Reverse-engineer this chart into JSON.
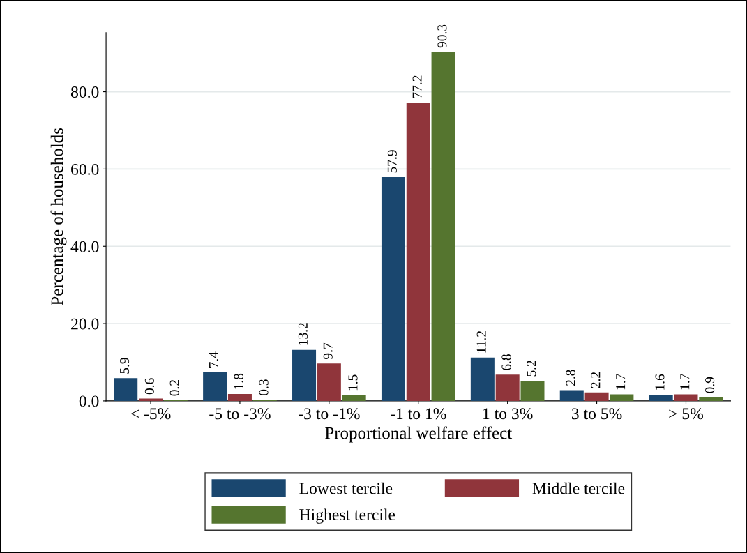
{
  "chart_data": {
    "type": "bar",
    "xlabel": "Proportional welfare effect",
    "ylabel": "Percentage of households",
    "categories": [
      "< -5%",
      "-5 to -3%",
      "-3 to -1%",
      "-1 to 1%",
      "1 to 3%",
      "3 to 5%",
      "> 5%"
    ],
    "series": [
      {
        "name": "Lowest tercile",
        "color": "#1a476f",
        "values": [
          5.9,
          7.4,
          13.2,
          57.9,
          11.2,
          2.8,
          1.6
        ]
      },
      {
        "name": "Middle tercile",
        "color": "#90353b",
        "values": [
          0.6,
          1.8,
          9.7,
          77.2,
          6.8,
          2.2,
          1.7
        ]
      },
      {
        "name": "Highest tercile",
        "color": "#55752f",
        "values": [
          0.2,
          0.3,
          1.5,
          90.3,
          5.2,
          1.7,
          0.9
        ]
      }
    ],
    "ylim": [
      0,
      95.3
    ],
    "yticks": [
      {
        "value": 0,
        "label": "0.0"
      },
      {
        "value": 20,
        "label": "20.0"
      },
      {
        "value": 40,
        "label": "40.0"
      },
      {
        "value": 60,
        "label": "60.0"
      },
      {
        "value": 80,
        "label": "80.0"
      }
    ],
    "grid": "y",
    "legend": "bottom",
    "data_labels": true
  }
}
